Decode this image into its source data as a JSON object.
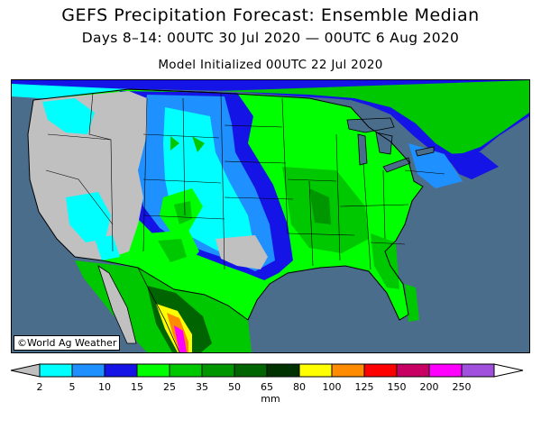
{
  "header": {
    "title": "GEFS Precipitation Forecast: Ensemble Median",
    "period": "Days 8–14: 00UTC 30 Jul 2020 — 00UTC 6 Aug 2020",
    "initialized": "Model Initialized 00UTC 22 Jul 2020"
  },
  "map": {
    "credit": "©World Ag Weather",
    "colors": {
      "ocean": "#4a6d8c",
      "land_below_2": "#c0c0c0",
      "border": "#000000"
    }
  },
  "legend": {
    "units": "mm",
    "ticks": [
      "2",
      "5",
      "10",
      "15",
      "25",
      "35",
      "50",
      "65",
      "80",
      "100",
      "125",
      "150",
      "200",
      "250"
    ],
    "low_color": "#c0c0c0",
    "high_color": "#ffffff",
    "colors": [
      "#00ffff",
      "#1e90ff",
      "#1414e6",
      "#00ff00",
      "#00c800",
      "#009600",
      "#006400",
      "#003200",
      "#ffff00",
      "#ff8c00",
      "#ff0000",
      "#c80064",
      "#ff00ff",
      "#a050dc"
    ]
  }
}
